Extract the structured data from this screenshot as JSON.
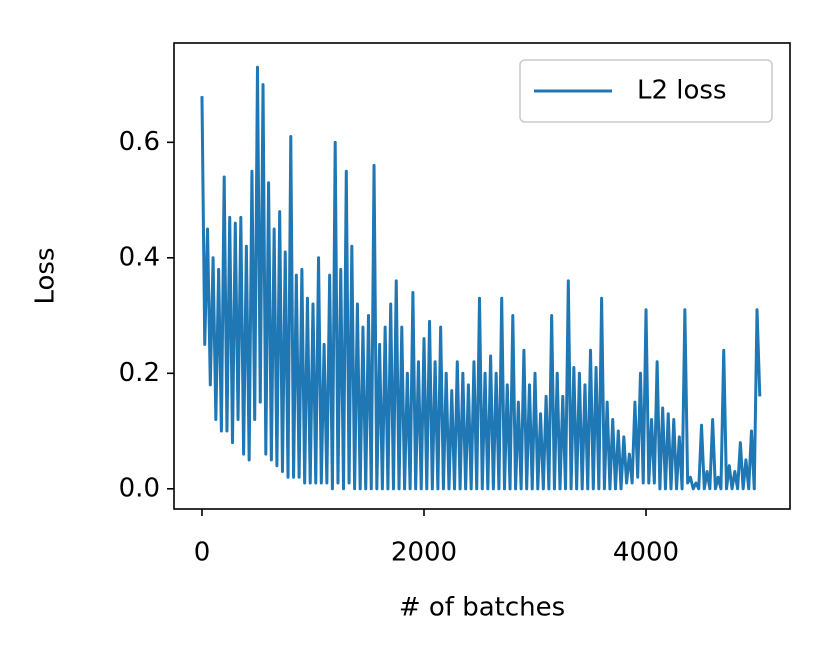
{
  "chart_data": {
    "type": "line",
    "xlabel": "# of batches",
    "ylabel": "Loss",
    "x": [
      0,
      25,
      50,
      75,
      100,
      125,
      150,
      175,
      200,
      225,
      250,
      275,
      300,
      325,
      350,
      375,
      400,
      425,
      450,
      475,
      500,
      525,
      550,
      575,
      600,
      625,
      650,
      675,
      700,
      725,
      750,
      775,
      800,
      825,
      850,
      875,
      900,
      925,
      950,
      975,
      1000,
      1025,
      1050,
      1075,
      1100,
      1125,
      1150,
      1175,
      1200,
      1225,
      1250,
      1275,
      1300,
      1325,
      1350,
      1375,
      1400,
      1425,
      1450,
      1475,
      1500,
      1525,
      1550,
      1575,
      1600,
      1625,
      1650,
      1675,
      1700,
      1725,
      1750,
      1775,
      1800,
      1825,
      1850,
      1875,
      1900,
      1925,
      1950,
      1975,
      2000,
      2025,
      2050,
      2075,
      2100,
      2125,
      2150,
      2175,
      2200,
      2225,
      2250,
      2275,
      2300,
      2325,
      2350,
      2375,
      2400,
      2425,
      2450,
      2475,
      2500,
      2525,
      2550,
      2575,
      2600,
      2625,
      2650,
      2675,
      2700,
      2725,
      2750,
      2775,
      2800,
      2825,
      2850,
      2875,
      2900,
      2925,
      2950,
      2975,
      3000,
      3025,
      3050,
      3075,
      3100,
      3125,
      3150,
      3175,
      3200,
      3225,
      3250,
      3275,
      3300,
      3325,
      3350,
      3375,
      3400,
      3425,
      3450,
      3475,
      3500,
      3525,
      3550,
      3575,
      3600,
      3625,
      3650,
      3675,
      3700,
      3725,
      3750,
      3775,
      3800,
      3825,
      3850,
      3875,
      3900,
      3925,
      3950,
      3975,
      4000,
      4025,
      4050,
      4075,
      4100,
      4125,
      4150,
      4175,
      4200,
      4225,
      4250,
      4275,
      4300,
      4325,
      4350,
      4375,
      4400,
      4425,
      4450,
      4475,
      4500,
      4525,
      4550,
      4575,
      4600,
      4625,
      4650,
      4675,
      4700,
      4725,
      4750,
      4775,
      4800,
      4825,
      4850,
      4875,
      4900,
      4925,
      4950,
      4975,
      5000,
      5025
    ],
    "series": [
      {
        "name": "L2 loss",
        "color": "#1f77b4",
        "values": [
          0.68,
          0.25,
          0.45,
          0.18,
          0.4,
          0.12,
          0.38,
          0.1,
          0.54,
          0.1,
          0.47,
          0.08,
          0.46,
          0.12,
          0.47,
          0.06,
          0.42,
          0.05,
          0.55,
          0.12,
          0.73,
          0.15,
          0.7,
          0.06,
          0.53,
          0.05,
          0.45,
          0.04,
          0.48,
          0.03,
          0.41,
          0.02,
          0.61,
          0.02,
          0.37,
          0.02,
          0.38,
          0.01,
          0.33,
          0.01,
          0.32,
          0.01,
          0.4,
          0.01,
          0.25,
          0.01,
          0.37,
          0.0,
          0.6,
          0.01,
          0.38,
          0.0,
          0.55,
          0.01,
          0.42,
          0.0,
          0.32,
          0.0,
          0.28,
          0.0,
          0.3,
          0.0,
          0.56,
          0.0,
          0.25,
          0.0,
          0.28,
          0.0,
          0.32,
          0.0,
          0.36,
          0.0,
          0.28,
          0.0,
          0.2,
          0.0,
          0.34,
          0.0,
          0.22,
          0.0,
          0.26,
          0.0,
          0.29,
          0.0,
          0.22,
          0.0,
          0.28,
          0.0,
          0.2,
          0.0,
          0.17,
          0.0,
          0.22,
          0.0,
          0.2,
          0.0,
          0.18,
          0.0,
          0.22,
          0.0,
          0.33,
          0.0,
          0.2,
          0.0,
          0.23,
          0.0,
          0.2,
          0.0,
          0.33,
          0.0,
          0.18,
          0.0,
          0.3,
          0.0,
          0.15,
          0.0,
          0.24,
          0.0,
          0.18,
          0.0,
          0.2,
          0.0,
          0.13,
          0.0,
          0.16,
          0.0,
          0.3,
          0.0,
          0.2,
          0.0,
          0.16,
          0.0,
          0.36,
          0.0,
          0.21,
          0.0,
          0.2,
          0.0,
          0.18,
          0.0,
          0.24,
          0.0,
          0.21,
          0.0,
          0.33,
          0.0,
          0.15,
          0.0,
          0.12,
          0.0,
          0.1,
          0.0,
          0.09,
          0.01,
          0.06,
          0.01,
          0.15,
          0.02,
          0.2,
          0.01,
          0.31,
          0.01,
          0.12,
          0.01,
          0.22,
          0.0,
          0.14,
          0.0,
          0.13,
          0.0,
          0.12,
          0.0,
          0.09,
          0.0,
          0.31,
          0.01,
          0.02,
          0.0,
          0.01,
          0.0,
          0.11,
          0.0,
          0.03,
          0.0,
          0.12,
          0.0,
          0.02,
          0.0,
          0.24,
          0.0,
          0.04,
          0.0,
          0.03,
          0.0,
          0.08,
          0.0,
          0.05,
          0.0,
          0.1,
          0.0,
          0.31,
          0.16
        ]
      }
    ],
    "xlim": [
      -252,
      5297
    ],
    "xticks": [
      0,
      2000,
      4000
    ],
    "ylim": [
      -0.035,
      0.772
    ],
    "yticks": [
      {
        "value": 0,
        "label": "0.0"
      },
      0.2,
      0.4,
      0.6
    ],
    "legend": "upper right"
  }
}
